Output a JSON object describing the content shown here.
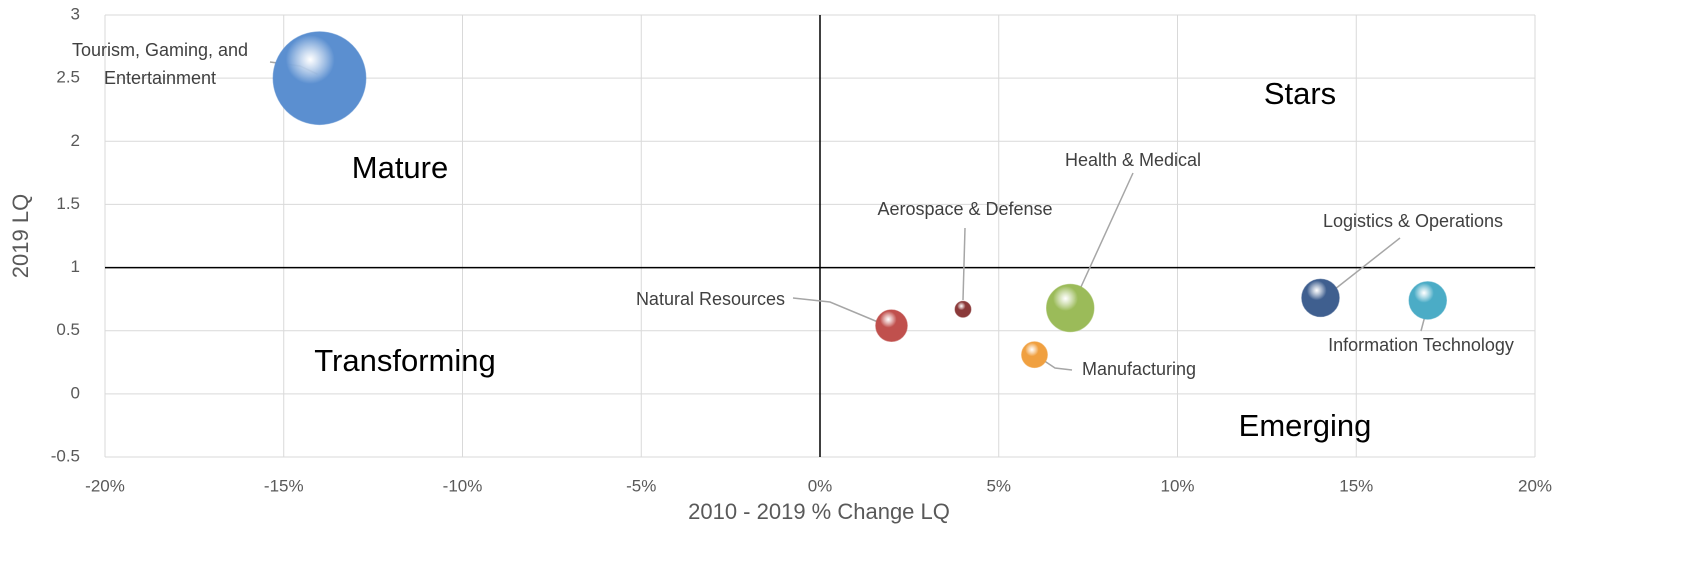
{
  "chart_data": {
    "type": "bubble",
    "xlabel": "2010 - 2019 % Change LQ",
    "ylabel": "2019 LQ",
    "xlim": [
      -20,
      20
    ],
    "xticks": [
      {
        "value": -20,
        "label": "-20%"
      },
      {
        "value": -15,
        "label": "-15%"
      },
      {
        "value": -10,
        "label": "-10%"
      },
      {
        "value": -5,
        "label": "-5%"
      },
      {
        "value": 0,
        "label": "0%"
      },
      {
        "value": 5,
        "label": "5%"
      },
      {
        "value": 10,
        "label": "10%"
      },
      {
        "value": 15,
        "label": "15%"
      },
      {
        "value": 20,
        "label": "20%"
      }
    ],
    "ylim": [
      -0.5,
      3
    ],
    "yticks": [
      -0.5,
      0,
      0.5,
      1,
      1.5,
      2,
      2.5,
      3
    ],
    "grid": true,
    "reference_lines": {
      "x": 0,
      "y": 1
    },
    "annotations": [
      "Mature",
      "Stars",
      "Transforming",
      "Emerging"
    ],
    "series": [
      {
        "name": "Tourism, Gaming, and Entertainment",
        "color": "#5b8fd0",
        "x": -14,
        "y": 2.5,
        "size": 44
      },
      {
        "name": "Natural Resources",
        "color": "#c0504d",
        "x": 2,
        "y": 0.54,
        "size": 5.1
      },
      {
        "name": "Aerospace & Defense",
        "color": "#8b3a3a",
        "x": 4,
        "y": 0.67,
        "size": 1.3
      },
      {
        "name": "Health & Medical",
        "color": "#9bbb59",
        "x": 7,
        "y": 0.68,
        "size": 11.5
      },
      {
        "name": "Manufacturing",
        "color": "#f0a040",
        "x": 6,
        "y": 0.31,
        "size": 3.4
      },
      {
        "name": "Logistics & Operations",
        "color": "#3f5f8f",
        "x": 14,
        "y": 0.76,
        "size": 7.2
      },
      {
        "name": "Information Technology",
        "color": "#4bacc6",
        "x": 17,
        "y": 0.74,
        "size": 7.2
      }
    ]
  }
}
